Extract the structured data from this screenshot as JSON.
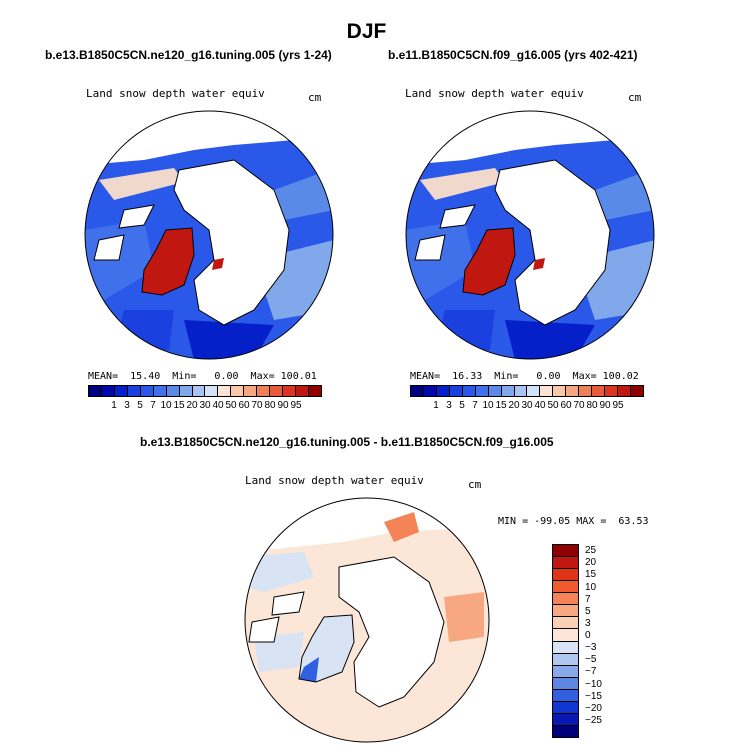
{
  "title": "DJF",
  "panel_left": {
    "subtitle": "b.e13.B1850C5CN.ne120_g16.tuning.005 (yrs 1-24)",
    "variable": "Land snow depth water equiv",
    "units": "cm",
    "stats": "MEAN=  15.40  Min=   0.00  Max= 100.01"
  },
  "panel_right": {
    "subtitle": "b.e11.B1850C5CN.f09_g16.005 (yrs 402-421)",
    "variable": "Land snow depth water equiv",
    "units": "cm",
    "stats": "MEAN=  16.33  Min=   0.00  Max= 100.02"
  },
  "panel_diff": {
    "subtitle": "b.e13.B1850C5CN.ne120_g16.tuning.005 - b.e11.B1850C5CN.f09_g16.005",
    "variable": "Land snow depth water equiv",
    "units": "cm",
    "stats": "MIN = -99.05 MAX =  63.53"
  },
  "colorbar_abs": {
    "colors": [
      "#000080",
      "#0008a8",
      "#0520c8",
      "#1a40e0",
      "#2a58e8",
      "#4070ea",
      "#5a8ae8",
      "#80a8ea",
      "#a8c4f2",
      "#d2e2f8",
      "#fbe4d4",
      "#f8c8a8",
      "#f4a880",
      "#ef8058",
      "#e85a38",
      "#dc3420",
      "#c01810",
      "#900000"
    ],
    "labels": [
      "1",
      "3",
      "5",
      "7",
      "10",
      "15",
      "20",
      "30",
      "40",
      "50",
      "60",
      "70",
      "80",
      "90",
      "95"
    ]
  },
  "colorbar_diff": {
    "colors": [
      "#900000",
      "#c01810",
      "#e03418",
      "#f05a30",
      "#f48458",
      "#f8a880",
      "#fad0b4",
      "#fbe6d8",
      "#d8e4f4",
      "#b0c8ee",
      "#88a8e8",
      "#5c88e4",
      "#3060e0",
      "#1038d0",
      "#0818b0",
      "#00007a"
    ],
    "labels": [
      "25",
      "20",
      "15",
      "10",
      "7",
      "5",
      "3",
      "0",
      "−3",
      "−5",
      "−7",
      "−10",
      "−15",
      "−20",
      "−25"
    ]
  }
}
